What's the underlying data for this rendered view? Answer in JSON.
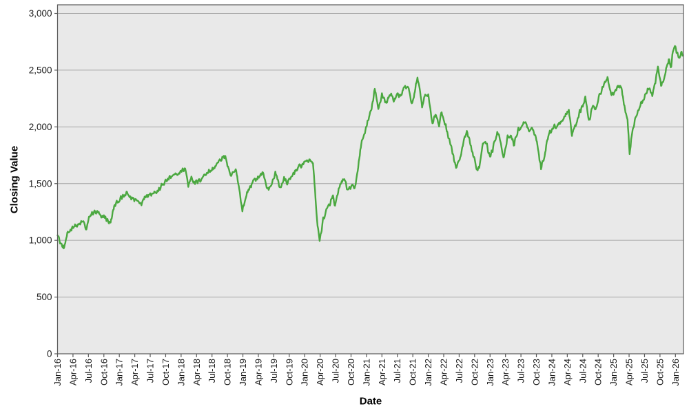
{
  "chart_data": {
    "type": "line",
    "xlabel": "Date",
    "ylabel": "Closing Value",
    "legend": "none",
    "grid": "horizontal",
    "ylim": [
      0,
      3000
    ],
    "y_tick_values": [
      0,
      500,
      1000,
      1500,
      2000,
      2500,
      3000
    ],
    "y_tick_labels": [
      "0",
      "500",
      "1,000",
      "1,500",
      "2,000",
      "2,500",
      "3,000"
    ],
    "x_tick_labels": [
      "Jan-16",
      "Apr-16",
      "Jul-16",
      "Oct-16",
      "Jan-17",
      "Apr-17",
      "Jul-17",
      "Oct-17",
      "Jan-18",
      "Apr-18",
      "Jul-18",
      "Oct-18",
      "Jan-19",
      "Apr-19",
      "Jul-19",
      "Oct-19",
      "Jan-20",
      "Apr-20",
      "Jul-20",
      "Oct-20",
      "Jan-21",
      "Apr-21",
      "Jul-21",
      "Oct-21",
      "Jan-22",
      "Apr-22",
      "Jul-22",
      "Oct-22",
      "Jan-23",
      "Apr-23",
      "Jul-23",
      "Oct-23",
      "Jan-24",
      "Apr-24",
      "Jul-24",
      "Oct-24",
      "Jan-25",
      "Apr-25",
      "Jul-25",
      "Oct-25",
      "Jan-26"
    ],
    "x_unit": "months since Jan-2016",
    "x_months_total": 121.4,
    "plot_bg_color": "#e9e9e9",
    "grid_color": "#a6a6a6",
    "border_color": "#595959",
    "text_color": "#1a1a1a",
    "series": [
      {
        "name": "Closing Value",
        "color": "#4ba840",
        "anchors": [
          [
            0,
            1070
          ],
          [
            0.4,
            990
          ],
          [
            1.2,
            928
          ],
          [
            2,
            1060
          ],
          [
            3,
            1125
          ],
          [
            4,
            1130
          ],
          [
            5,
            1168
          ],
          [
            5.6,
            1092
          ],
          [
            6.2,
            1210
          ],
          [
            7,
            1250
          ],
          [
            8,
            1238
          ],
          [
            8.5,
            1192
          ],
          [
            9,
            1215
          ],
          [
            9.8,
            1170
          ],
          [
            10.3,
            1152
          ],
          [
            11,
            1300
          ],
          [
            12,
            1358
          ],
          [
            13,
            1390
          ],
          [
            13.5,
            1415
          ],
          [
            14.2,
            1375
          ],
          [
            15,
            1362
          ],
          [
            16.4,
            1330
          ],
          [
            17,
            1398
          ],
          [
            18,
            1405
          ],
          [
            18.7,
            1432
          ],
          [
            19.3,
            1420
          ],
          [
            20,
            1468
          ],
          [
            21,
            1520
          ],
          [
            22,
            1558
          ],
          [
            23,
            1575
          ],
          [
            24,
            1605
          ],
          [
            24.8,
            1638
          ],
          [
            25.4,
            1480
          ],
          [
            26,
            1565
          ],
          [
            26.6,
            1505
          ],
          [
            27.3,
            1518
          ],
          [
            28,
            1548
          ],
          [
            29,
            1600
          ],
          [
            30,
            1618
          ],
          [
            31,
            1675
          ],
          [
            32,
            1725
          ],
          [
            32.6,
            1742
          ],
          [
            33.2,
            1618
          ],
          [
            33.6,
            1565
          ],
          [
            34.2,
            1595
          ],
          [
            34.7,
            1618
          ],
          [
            35.3,
            1450
          ],
          [
            35.9,
            1262
          ],
          [
            36.6,
            1382
          ],
          [
            37,
            1440
          ],
          [
            38,
            1520
          ],
          [
            39,
            1558
          ],
          [
            40,
            1592
          ],
          [
            40.8,
            1442
          ],
          [
            41.5,
            1482
          ],
          [
            42.3,
            1598
          ],
          [
            43.2,
            1462
          ],
          [
            44,
            1540
          ],
          [
            44.6,
            1508
          ],
          [
            45.2,
            1535
          ],
          [
            46,
            1608
          ],
          [
            47,
            1650
          ],
          [
            48,
            1688
          ],
          [
            48.6,
            1705
          ],
          [
            49.6,
            1695
          ],
          [
            50.3,
            1230
          ],
          [
            50.9,
            988
          ],
          [
            51.6,
            1190
          ],
          [
            52.2,
            1258
          ],
          [
            53,
            1332
          ],
          [
            53.5,
            1392
          ],
          [
            53.9,
            1292
          ],
          [
            54.6,
            1442
          ],
          [
            55.2,
            1522
          ],
          [
            55.8,
            1535
          ],
          [
            56.4,
            1432
          ],
          [
            57,
            1478
          ],
          [
            57.7,
            1452
          ],
          [
            58.3,
            1620
          ],
          [
            59,
            1850
          ],
          [
            60,
            2005
          ],
          [
            61,
            2160
          ],
          [
            61.6,
            2335
          ],
          [
            62.3,
            2152
          ],
          [
            63,
            2290
          ],
          [
            63.9,
            2205
          ],
          [
            64.6,
            2295
          ],
          [
            65.4,
            2235
          ],
          [
            66,
            2300
          ],
          [
            66.6,
            2255
          ],
          [
            67.2,
            2335
          ],
          [
            68,
            2360
          ],
          [
            68.8,
            2205
          ],
          [
            69.4,
            2295
          ],
          [
            69.9,
            2452
          ],
          [
            70.8,
            2182
          ],
          [
            71.4,
            2292
          ],
          [
            72,
            2278
          ],
          [
            72.8,
            2035
          ],
          [
            73.4,
            2122
          ],
          [
            74.1,
            2005
          ],
          [
            74.6,
            2132
          ],
          [
            75.4,
            2002
          ],
          [
            76.1,
            1888
          ],
          [
            76.6,
            1792
          ],
          [
            77.4,
            1642
          ],
          [
            78.1,
            1705
          ],
          [
            79,
            1892
          ],
          [
            79.5,
            1948
          ],
          [
            80.6,
            1772
          ],
          [
            81.4,
            1628
          ],
          [
            81.9,
            1645
          ],
          [
            82.6,
            1862
          ],
          [
            83.1,
            1888
          ],
          [
            83.9,
            1742
          ],
          [
            84.4,
            1782
          ],
          [
            85.1,
            1902
          ],
          [
            85.4,
            1972
          ],
          [
            86.1,
            1868
          ],
          [
            86.6,
            1708
          ],
          [
            87.4,
            1902
          ],
          [
            88,
            1918
          ],
          [
            88.7,
            1848
          ],
          [
            89.4,
            1968
          ],
          [
            90.1,
            2002
          ],
          [
            90.9,
            2052
          ],
          [
            91.6,
            1948
          ],
          [
            92.4,
            1988
          ],
          [
            93.1,
            1868
          ],
          [
            93.9,
            1632
          ],
          [
            94.6,
            1752
          ],
          [
            95.1,
            1898
          ],
          [
            96,
            1988
          ],
          [
            97,
            2012
          ],
          [
            98,
            2062
          ],
          [
            99,
            2128
          ],
          [
            99.3,
            2152
          ],
          [
            99.9,
            1932
          ],
          [
            100.7,
            2030
          ],
          [
            101.4,
            2135
          ],
          [
            102,
            2185
          ],
          [
            102.5,
            2258
          ],
          [
            103.2,
            2052
          ],
          [
            104,
            2198
          ],
          [
            104.5,
            2152
          ],
          [
            105,
            2248
          ],
          [
            106,
            2352
          ],
          [
            106.8,
            2445
          ],
          [
            107.5,
            2288
          ],
          [
            108,
            2302
          ],
          [
            108.8,
            2372
          ],
          [
            109.5,
            2348
          ],
          [
            110.2,
            2152
          ],
          [
            110.7,
            2068
          ],
          [
            111.1,
            1758
          ],
          [
            111.6,
            1958
          ],
          [
            112.3,
            2088
          ],
          [
            113.3,
            2198
          ],
          [
            114.3,
            2298
          ],
          [
            115,
            2332
          ],
          [
            115.5,
            2282
          ],
          [
            116.1,
            2405
          ],
          [
            116.6,
            2522
          ],
          [
            117.2,
            2362
          ],
          [
            117.7,
            2402
          ],
          [
            118.2,
            2502
          ],
          [
            118.7,
            2598
          ],
          [
            119.1,
            2522
          ],
          [
            119.7,
            2712
          ],
          [
            120.1,
            2692
          ],
          [
            120.6,
            2602
          ],
          [
            121.1,
            2648
          ],
          [
            121.4,
            2622
          ]
        ]
      }
    ],
    "daily_noise": {
      "amplitude": 26,
      "step_months": 0.1,
      "seed": 12345
    }
  }
}
